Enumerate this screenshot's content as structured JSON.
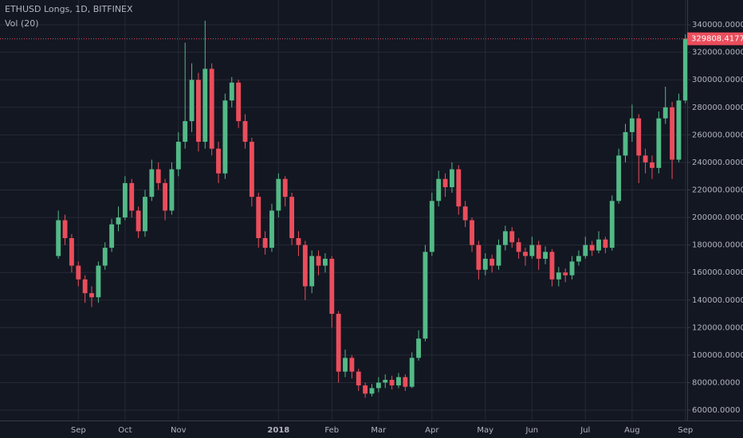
{
  "chart_data": {
    "type": "candlestick",
    "title": "ETHUSD Longs, 1D, BITFINEX",
    "subtitle": "Vol (20)",
    "categories": [
      null,
      null,
      null,
      "Sep",
      null,
      null,
      null,
      null,
      null,
      null,
      "Oct",
      null,
      null,
      null,
      null,
      null,
      null,
      null,
      "Nov",
      null,
      null,
      null,
      null,
      null,
      null,
      null,
      null,
      null,
      null,
      null,
      null,
      null,
      null,
      "2018",
      null,
      null,
      null,
      null,
      null,
      null,
      null,
      "Feb",
      null,
      null,
      null,
      null,
      null,
      null,
      "Mar",
      null,
      null,
      null,
      null,
      null,
      null,
      null,
      "Apr",
      null,
      null,
      null,
      null,
      null,
      null,
      null,
      "May",
      null,
      null,
      null,
      null,
      null,
      null,
      "Jun",
      null,
      null,
      null,
      null,
      null,
      null,
      null,
      "Jul",
      null,
      null,
      null,
      null,
      null,
      null,
      "Aug",
      null,
      null,
      null,
      null,
      null,
      null,
      null,
      "Sep"
    ],
    "open": [
      172000,
      198000,
      185000,
      165000,
      155000,
      145000,
      142000,
      165000,
      178000,
      195000,
      200000,
      225000,
      205000,
      190000,
      215000,
      235000,
      225000,
      205000,
      235000,
      255000,
      270000,
      300000,
      255000,
      308000,
      250000,
      232000,
      285000,
      298000,
      270000,
      255000,
      215000,
      185000,
      178000,
      205000,
      228000,
      215000,
      185000,
      180000,
      150000,
      172000,
      165000,
      170000,
      130000,
      88000,
      98000,
      88000,
      78000,
      72000,
      76000,
      80000,
      82000,
      78000,
      84000,
      77000,
      98000,
      112000,
      175000,
      212000,
      228000,
      222000,
      235000,
      208000,
      198000,
      180000,
      162000,
      170000,
      165000,
      180000,
      190000,
      182000,
      175000,
      172000,
      180000,
      170000,
      175000,
      155000,
      160000,
      158000,
      168000,
      172000,
      180000,
      176000,
      184000,
      178000,
      212000,
      245000,
      262000,
      272000,
      245000,
      240000,
      236000,
      272000,
      280000,
      242000,
      285000
    ],
    "high": [
      205000,
      202000,
      188000,
      168000,
      158000,
      150000,
      168000,
      182000,
      199000,
      208000,
      230000,
      228000,
      208000,
      220000,
      242000,
      240000,
      228000,
      240000,
      262000,
      327000,
      312000,
      305000,
      343000,
      312000,
      255000,
      290000,
      302000,
      300000,
      275000,
      258000,
      218000,
      190000,
      210000,
      232000,
      230000,
      218000,
      190000,
      183000,
      176000,
      176000,
      174000,
      172000,
      132000,
      104000,
      100000,
      90000,
      80000,
      79000,
      84000,
      86000,
      85000,
      87000,
      86000,
      102000,
      118000,
      180000,
      218000,
      234000,
      232000,
      240000,
      238000,
      212000,
      200000,
      183000,
      174000,
      173000,
      184000,
      194000,
      193000,
      185000,
      178000,
      186000,
      183000,
      179000,
      177000,
      164000,
      163000,
      172000,
      176000,
      186000,
      183000,
      190000,
      186000,
      216000,
      250000,
      268000,
      282000,
      275000,
      250000,
      245000,
      277000,
      295000,
      284000,
      290000,
      333000
    ],
    "low": [
      170000,
      180000,
      160000,
      150000,
      138000,
      135000,
      138000,
      162000,
      175000,
      190000,
      198000,
      200000,
      185000,
      186000,
      212000,
      220000,
      198000,
      202000,
      230000,
      250000,
      262000,
      248000,
      250000,
      245000,
      225000,
      228000,
      280000,
      265000,
      250000,
      208000,
      178000,
      173000,
      175000,
      200000,
      208000,
      180000,
      172000,
      140000,
      145000,
      158000,
      160000,
      120000,
      80000,
      84000,
      83000,
      74000,
      69000,
      70000,
      73000,
      76000,
      75000,
      76000,
      74000,
      76000,
      96000,
      110000,
      172000,
      208000,
      215000,
      218000,
      202000,
      193000,
      175000,
      155000,
      158000,
      160000,
      162000,
      176000,
      178000,
      170000,
      165000,
      170000,
      162000,
      166000,
      150000,
      150000,
      153000,
      155000,
      165000,
      170000,
      172000,
      174000,
      174000,
      176000,
      210000,
      240000,
      255000,
      225000,
      232000,
      228000,
      232000,
      268000,
      228000,
      240000,
      283000
    ],
    "close": [
      198000,
      185000,
      165000,
      155000,
      145000,
      142000,
      165000,
      178000,
      195000,
      200000,
      225000,
      205000,
      190000,
      215000,
      235000,
      225000,
      205000,
      235000,
      255000,
      270000,
      300000,
      255000,
      308000,
      250000,
      232000,
      285000,
      298000,
      270000,
      255000,
      215000,
      185000,
      178000,
      205000,
      228000,
      215000,
      185000,
      180000,
      150000,
      172000,
      165000,
      170000,
      130000,
      88000,
      98000,
      88000,
      78000,
      72000,
      76000,
      80000,
      82000,
      78000,
      84000,
      77000,
      98000,
      112000,
      175000,
      212000,
      228000,
      222000,
      235000,
      208000,
      198000,
      180000,
      162000,
      170000,
      165000,
      180000,
      190000,
      182000,
      175000,
      172000,
      180000,
      170000,
      175000,
      155000,
      160000,
      158000,
      168000,
      172000,
      180000,
      176000,
      184000,
      178000,
      212000,
      245000,
      262000,
      272000,
      245000,
      240000,
      236000,
      272000,
      280000,
      242000,
      285000,
      329808.4177
    ],
    "up_color": "#53b987",
    "down_color": "#eb4d5c",
    "last_price": 329808.4177,
    "ylim": [
      52500,
      358000
    ],
    "yticks": [
      {
        "value": 60000,
        "label": "60000.0000"
      },
      {
        "value": 80000,
        "label": "80000.0000"
      },
      {
        "value": 100000,
        "label": "100000.0000"
      },
      {
        "value": 120000,
        "label": "120000.0000"
      },
      {
        "value": 140000,
        "label": "140000.0000"
      },
      {
        "value": 160000,
        "label": "160000.0000"
      },
      {
        "value": 180000,
        "label": "180000.0000"
      },
      {
        "value": 200000,
        "label": "200000.0000"
      },
      {
        "value": 220000,
        "label": "220000.0000"
      },
      {
        "value": 240000,
        "label": "240000.0000"
      },
      {
        "value": 260000,
        "label": "260000.0000"
      },
      {
        "value": 280000,
        "label": "280000.0000"
      },
      {
        "value": 300000,
        "label": "300000.0000"
      },
      {
        "value": 320000,
        "label": "320000.0000"
      },
      {
        "value": 340000,
        "label": "340000.0000"
      }
    ],
    "grid": true
  }
}
